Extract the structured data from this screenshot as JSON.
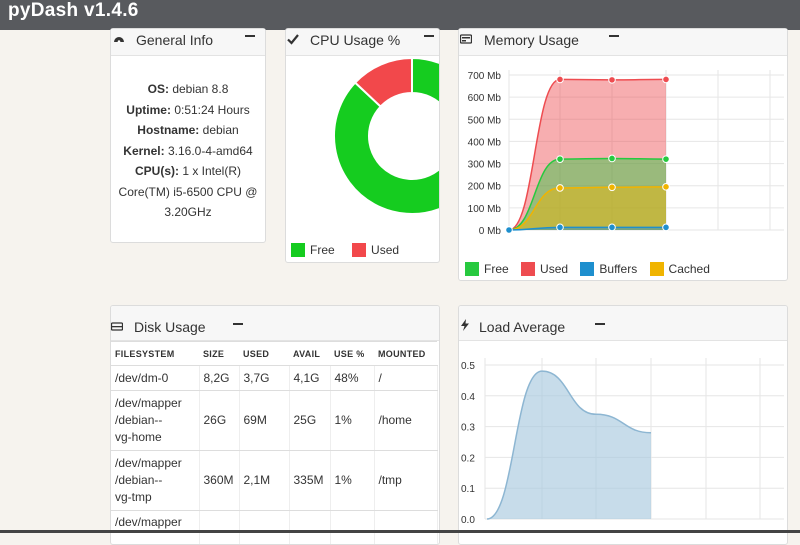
{
  "app": {
    "title": "pyDash v1.4.6"
  },
  "general": {
    "title": "General Info",
    "rows": [
      {
        "label": "OS:",
        "value": "debian 8.8"
      },
      {
        "label": "Uptime:",
        "value": "0:51:24 Hours"
      },
      {
        "label": "Hostname:",
        "value": "debian"
      },
      {
        "label": "Kernel:",
        "value": "3.16.0-4-amd64"
      },
      {
        "label": "CPU(s):",
        "value": "1 x Intel(R)"
      }
    ],
    "cpu_cont1": "Core(TM) i5-6500 CPU @",
    "cpu_cont2": "3.20GHz"
  },
  "cpu": {
    "title": "CPU Usage %",
    "legend": {
      "free": "Free",
      "used": "Used"
    },
    "colors": {
      "free": "#15cc1f",
      "used": "#f2484b"
    }
  },
  "memory": {
    "title": "Memory Usage",
    "legend": {
      "free": "Free",
      "used": "Used",
      "buffers": "Buffers",
      "cached": "Cached"
    },
    "colors": {
      "free": "#27c93f",
      "used": "#ee4c50",
      "buffers": "#1e8fce",
      "cached": "#f0b400"
    },
    "yticks": [
      "700 Mb",
      "600 Mb",
      "500 Mb",
      "400 Mb",
      "300 Mb",
      "200 Mb",
      "100 Mb",
      "0 Mb"
    ]
  },
  "disk": {
    "title": "Disk Usage",
    "headers": [
      "FILESYSTEM",
      "SIZE",
      "USED",
      "AVAIL",
      "USE %",
      "MOUNTED"
    ],
    "rows": [
      {
        "fs": "/dev/dm-0",
        "size": "8,2G",
        "used": "3,7G",
        "avail": "4,1G",
        "pct": "48%",
        "mount": "/"
      },
      {
        "fs1": "/dev/mapper",
        "fs2": "/debian--",
        "fs3": "vg-home",
        "size": "26G",
        "used": "69M",
        "avail": "25G",
        "pct": "1%",
        "mount": "/home"
      },
      {
        "fs1": "/dev/mapper",
        "fs2": "/debian--",
        "fs3": "vg-tmp",
        "size": "360M",
        "used": "2,1M",
        "avail": "335M",
        "pct": "1%",
        "mount": "/tmp"
      },
      {
        "fs1": "/dev/mapper"
      }
    ]
  },
  "load": {
    "title": "Load Average",
    "yticks": [
      "0.5",
      "0.4",
      "0.3",
      "0.2",
      "0.1",
      "0.0"
    ],
    "color": "#a9c9de"
  },
  "chart_data": [
    {
      "type": "pie",
      "title": "CPU Usage %",
      "legend": [
        "Free",
        "Used"
      ],
      "values": [
        87,
        13
      ]
    },
    {
      "type": "area",
      "title": "Memory Usage",
      "yunit": "Mb",
      "ylim": [
        0,
        700
      ],
      "legend_position": "bottom",
      "series": [
        {
          "name": "Used",
          "values": [
            0,
            680,
            678,
            680
          ]
        },
        {
          "name": "Free",
          "values": [
            0,
            320,
            323,
            320
          ]
        },
        {
          "name": "Cached",
          "values": [
            0,
            190,
            193,
            195
          ]
        },
        {
          "name": "Buffers",
          "values": [
            0,
            12,
            12,
            12
          ]
        }
      ]
    },
    {
      "type": "area",
      "title": "Load Average",
      "ylim": [
        0,
        0.5
      ],
      "values": [
        0.0,
        0.48,
        0.34,
        0.28
      ]
    }
  ]
}
